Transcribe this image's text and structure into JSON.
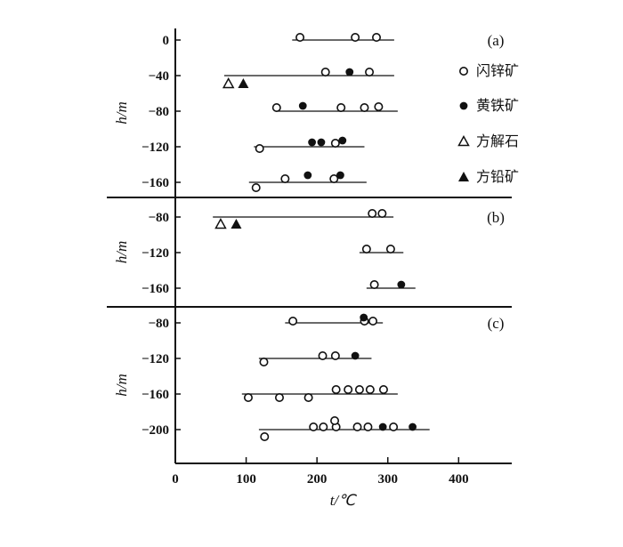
{
  "chart_data": {
    "type": "scatter",
    "title": "",
    "xlabel": "t/℃",
    "ylabel": "h/m",
    "xlim": [
      0,
      475
    ],
    "xticks": [
      0,
      100,
      200,
      300,
      400
    ],
    "legend_position": "right of panel (a)",
    "legend": [
      {
        "name": "闪锌矿",
        "marker": "open-circle"
      },
      {
        "name": "黄铁矿",
        "marker": "filled-circle"
      },
      {
        "name": "方解石",
        "marker": "open-triangle"
      },
      {
        "name": "方铅矿",
        "marker": "filled-triangle"
      }
    ],
    "panels": [
      {
        "label": "(a)",
        "ylim": [
          -177,
          13
        ],
        "yticks": [
          0,
          -40,
          -80,
          -120,
          -160
        ],
        "levels": [
          {
            "h": 0,
            "range": [
              165,
              309
            ],
            "points": [
              {
                "t": 176,
                "h": 3,
                "m": "open-circle"
              },
              {
                "t": 254,
                "h": 3,
                "m": "open-circle"
              },
              {
                "t": 284,
                "h": 3,
                "m": "open-circle"
              }
            ]
          },
          {
            "h": -40,
            "range": [
              69,
              309
            ],
            "points": [
              {
                "t": 212,
                "h": -36,
                "m": "open-circle"
              },
              {
                "t": 274,
                "h": -36,
                "m": "open-circle"
              },
              {
                "t": 246,
                "h": -36,
                "m": "filled-circle"
              },
              {
                "t": 75,
                "h": -49,
                "m": "open-triangle"
              },
              {
                "t": 96,
                "h": -49,
                "m": "filled-triangle"
              }
            ]
          },
          {
            "h": -80,
            "range": [
              144,
              314
            ],
            "points": [
              {
                "t": 143,
                "h": -76,
                "m": "open-circle"
              },
              {
                "t": 234,
                "h": -76,
                "m": "open-circle"
              },
              {
                "t": 267,
                "h": -76,
                "m": "open-circle"
              },
              {
                "t": 287,
                "h": -75,
                "m": "open-circle"
              },
              {
                "t": 180,
                "h": -74,
                "m": "filled-circle"
              }
            ]
          },
          {
            "h": -120,
            "range": [
              111,
              267
            ],
            "points": [
              {
                "t": 119,
                "h": -122,
                "m": "open-circle"
              },
              {
                "t": 226,
                "h": -116,
                "m": "open-circle"
              },
              {
                "t": 193,
                "h": -115,
                "m": "filled-circle"
              },
              {
                "t": 206,
                "h": -115,
                "m": "filled-circle"
              },
              {
                "t": 236,
                "h": -113,
                "m": "filled-circle"
              }
            ]
          },
          {
            "h": -160,
            "range": [
              104,
              270
            ],
            "points": [
              {
                "t": 114,
                "h": -166,
                "m": "open-circle"
              },
              {
                "t": 155,
                "h": -156,
                "m": "open-circle"
              },
              {
                "t": 224,
                "h": -156,
                "m": "open-circle"
              },
              {
                "t": 187,
                "h": -152,
                "m": "filled-circle"
              },
              {
                "t": 233,
                "h": -152,
                "m": "filled-circle"
              }
            ]
          }
        ]
      },
      {
        "label": "(b)",
        "ylim": [
          -181,
          -58
        ],
        "yticks": [
          -80,
          -120,
          -160
        ],
        "levels": [
          {
            "h": -80,
            "range": [
              53,
              308
            ],
            "points": [
              {
                "t": 278,
                "h": -76,
                "m": "open-circle"
              },
              {
                "t": 292,
                "h": -76,
                "m": "open-circle"
              },
              {
                "t": 64,
                "h": -88,
                "m": "open-triangle"
              },
              {
                "t": 86,
                "h": -88,
                "m": "filled-triangle"
              }
            ]
          },
          {
            "h": -120,
            "range": [
              260,
              322
            ],
            "points": [
              {
                "t": 270,
                "h": -116,
                "m": "open-circle"
              },
              {
                "t": 304,
                "h": -116,
                "m": "open-circle"
              }
            ]
          },
          {
            "h": -160,
            "range": [
              270,
              339
            ],
            "points": [
              {
                "t": 281,
                "h": -156,
                "m": "open-circle"
              },
              {
                "t": 319,
                "h": -156,
                "m": "filled-circle"
              }
            ]
          }
        ]
      },
      {
        "label": "(c)",
        "ylim": [
          -238,
          -62
        ],
        "yticks": [
          -80,
          -120,
          -160,
          -200
        ],
        "levels": [
          {
            "h": -80,
            "range": [
              155,
              293
            ],
            "points": [
              {
                "t": 166,
                "h": -78,
                "m": "open-circle"
              },
              {
                "t": 267,
                "h": -78,
                "m": "open-circle"
              },
              {
                "t": 279,
                "h": -78,
                "m": "open-circle"
              },
              {
                "t": 266,
                "h": -74,
                "m": "filled-circle"
              }
            ]
          },
          {
            "h": -120,
            "range": [
              118,
              277
            ],
            "points": [
              {
                "t": 125,
                "h": -124,
                "m": "open-circle"
              },
              {
                "t": 208,
                "h": -117,
                "m": "open-circle"
              },
              {
                "t": 226,
                "h": -117,
                "m": "open-circle"
              },
              {
                "t": 254,
                "h": -117,
                "m": "filled-circle"
              }
            ]
          },
          {
            "h": -160,
            "range": [
              94,
              314
            ],
            "points": [
              {
                "t": 103,
                "h": -164,
                "m": "open-circle"
              },
              {
                "t": 147,
                "h": -164,
                "m": "open-circle"
              },
              {
                "t": 188,
                "h": -164,
                "m": "open-circle"
              },
              {
                "t": 227,
                "h": -155,
                "m": "open-circle"
              },
              {
                "t": 244,
                "h": -155,
                "m": "open-circle"
              },
              {
                "t": 260,
                "h": -155,
                "m": "open-circle"
              },
              {
                "t": 275,
                "h": -155,
                "m": "open-circle"
              },
              {
                "t": 294,
                "h": -155,
                "m": "open-circle"
              }
            ]
          },
          {
            "h": -200,
            "range": [
              118,
              359
            ],
            "points": [
              {
                "t": 126,
                "h": -208,
                "m": "open-circle"
              },
              {
                "t": 195,
                "h": -197,
                "m": "open-circle"
              },
              {
                "t": 209,
                "h": -197,
                "m": "open-circle"
              },
              {
                "t": 227,
                "h": -197,
                "m": "open-circle"
              },
              {
                "t": 225,
                "h": -190,
                "m": "open-circle"
              },
              {
                "t": 257,
                "h": -197,
                "m": "open-circle"
              },
              {
                "t": 272,
                "h": -197,
                "m": "open-circle"
              },
              {
                "t": 308,
                "h": -197,
                "m": "open-circle"
              },
              {
                "t": 293,
                "h": -197,
                "m": "filled-circle"
              },
              {
                "t": 335,
                "h": -197,
                "m": "filled-circle"
              }
            ]
          }
        ]
      }
    ]
  }
}
